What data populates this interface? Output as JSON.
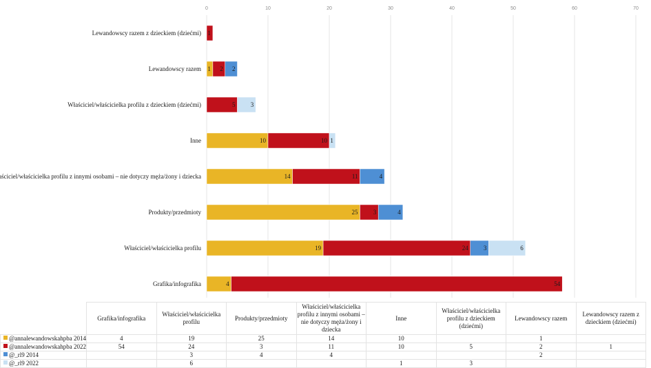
{
  "chart_data": {
    "type": "bar",
    "orientation": "horizontal",
    "stacked": true,
    "title": "",
    "xlabel": "",
    "ylabel": "",
    "xlim": [
      0,
      70
    ],
    "x_ticks": [
      0,
      10,
      20,
      30,
      40,
      50,
      60,
      70
    ],
    "grid": true,
    "legend": "data-table-bottom",
    "categories": [
      "Grafika/infografika",
      "Właściciel/właścicielka profilu",
      "Produkty/przedmioty",
      "Właściciel/właścicielka profilu z innymi osobami – nie dotyczy męża/żony i dziecka",
      "Inne",
      "Właściciel/właścicielka profilu z dzieckiem (dziećmi)",
      "Lewandowscy razem",
      "Lewandowscy razem z dzieckiem (dziećmi)"
    ],
    "table_headers": [
      "Grafika/infografika",
      "Właściciel/właścicielka profilu",
      "Produkty/przedmioty",
      "Właściciel/właścicielka profilu z innymi osobami – nie dotyczy męża/żony i dziecka",
      "Inne",
      "Właściciel/właścicielka profilu z dzieckiem (dziećmi)",
      "Lewandowscy razem",
      "Lewandowscy razem z dzieckiem (dziećmi)"
    ],
    "series": [
      {
        "name": "@annalewandowskahpba 2014",
        "color": "#E9B526",
        "values": [
          4,
          19,
          25,
          14,
          10,
          null,
          1,
          null
        ]
      },
      {
        "name": "@annalewandowskahpba 2022",
        "color": "#C0111B",
        "values": [
          54,
          24,
          3,
          11,
          10,
          5,
          2,
          1
        ]
      },
      {
        "name": "@_rl9 2014",
        "color": "#4E8FD4",
        "values": [
          null,
          3,
          4,
          4,
          null,
          null,
          2,
          null
        ]
      },
      {
        "name": "@_rl9 2022",
        "color": "#C9E1F3",
        "values": [
          null,
          6,
          null,
          null,
          1,
          3,
          null,
          null
        ]
      }
    ]
  }
}
